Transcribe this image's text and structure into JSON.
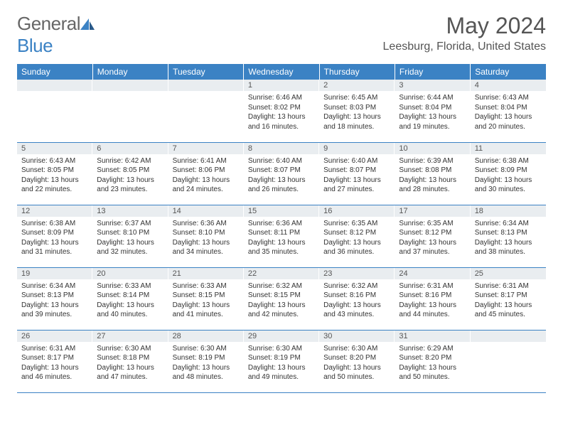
{
  "brand": {
    "part1": "General",
    "part2": "Blue"
  },
  "title": "May 2024",
  "location": "Leesburg, Florida, United States",
  "colors": {
    "accent": "#3b82c4",
    "headerText": "#ffffff",
    "dayBg": "#e9edf0",
    "text": "#333333",
    "border": "#3b82c4"
  },
  "weekdays": [
    "Sunday",
    "Monday",
    "Tuesday",
    "Wednesday",
    "Thursday",
    "Friday",
    "Saturday"
  ],
  "weeks": [
    [
      null,
      null,
      null,
      {
        "n": "1",
        "sr": "Sunrise: 6:46 AM",
        "ss": "Sunset: 8:02 PM",
        "d1": "Daylight: 13 hours",
        "d2": "and 16 minutes."
      },
      {
        "n": "2",
        "sr": "Sunrise: 6:45 AM",
        "ss": "Sunset: 8:03 PM",
        "d1": "Daylight: 13 hours",
        "d2": "and 18 minutes."
      },
      {
        "n": "3",
        "sr": "Sunrise: 6:44 AM",
        "ss": "Sunset: 8:04 PM",
        "d1": "Daylight: 13 hours",
        "d2": "and 19 minutes."
      },
      {
        "n": "4",
        "sr": "Sunrise: 6:43 AM",
        "ss": "Sunset: 8:04 PM",
        "d1": "Daylight: 13 hours",
        "d2": "and 20 minutes."
      }
    ],
    [
      {
        "n": "5",
        "sr": "Sunrise: 6:43 AM",
        "ss": "Sunset: 8:05 PM",
        "d1": "Daylight: 13 hours",
        "d2": "and 22 minutes."
      },
      {
        "n": "6",
        "sr": "Sunrise: 6:42 AM",
        "ss": "Sunset: 8:05 PM",
        "d1": "Daylight: 13 hours",
        "d2": "and 23 minutes."
      },
      {
        "n": "7",
        "sr": "Sunrise: 6:41 AM",
        "ss": "Sunset: 8:06 PM",
        "d1": "Daylight: 13 hours",
        "d2": "and 24 minutes."
      },
      {
        "n": "8",
        "sr": "Sunrise: 6:40 AM",
        "ss": "Sunset: 8:07 PM",
        "d1": "Daylight: 13 hours",
        "d2": "and 26 minutes."
      },
      {
        "n": "9",
        "sr": "Sunrise: 6:40 AM",
        "ss": "Sunset: 8:07 PM",
        "d1": "Daylight: 13 hours",
        "d2": "and 27 minutes."
      },
      {
        "n": "10",
        "sr": "Sunrise: 6:39 AM",
        "ss": "Sunset: 8:08 PM",
        "d1": "Daylight: 13 hours",
        "d2": "and 28 minutes."
      },
      {
        "n": "11",
        "sr": "Sunrise: 6:38 AM",
        "ss": "Sunset: 8:09 PM",
        "d1": "Daylight: 13 hours",
        "d2": "and 30 minutes."
      }
    ],
    [
      {
        "n": "12",
        "sr": "Sunrise: 6:38 AM",
        "ss": "Sunset: 8:09 PM",
        "d1": "Daylight: 13 hours",
        "d2": "and 31 minutes."
      },
      {
        "n": "13",
        "sr": "Sunrise: 6:37 AM",
        "ss": "Sunset: 8:10 PM",
        "d1": "Daylight: 13 hours",
        "d2": "and 32 minutes."
      },
      {
        "n": "14",
        "sr": "Sunrise: 6:36 AM",
        "ss": "Sunset: 8:10 PM",
        "d1": "Daylight: 13 hours",
        "d2": "and 34 minutes."
      },
      {
        "n": "15",
        "sr": "Sunrise: 6:36 AM",
        "ss": "Sunset: 8:11 PM",
        "d1": "Daylight: 13 hours",
        "d2": "and 35 minutes."
      },
      {
        "n": "16",
        "sr": "Sunrise: 6:35 AM",
        "ss": "Sunset: 8:12 PM",
        "d1": "Daylight: 13 hours",
        "d2": "and 36 minutes."
      },
      {
        "n": "17",
        "sr": "Sunrise: 6:35 AM",
        "ss": "Sunset: 8:12 PM",
        "d1": "Daylight: 13 hours",
        "d2": "and 37 minutes."
      },
      {
        "n": "18",
        "sr": "Sunrise: 6:34 AM",
        "ss": "Sunset: 8:13 PM",
        "d1": "Daylight: 13 hours",
        "d2": "and 38 minutes."
      }
    ],
    [
      {
        "n": "19",
        "sr": "Sunrise: 6:34 AM",
        "ss": "Sunset: 8:13 PM",
        "d1": "Daylight: 13 hours",
        "d2": "and 39 minutes."
      },
      {
        "n": "20",
        "sr": "Sunrise: 6:33 AM",
        "ss": "Sunset: 8:14 PM",
        "d1": "Daylight: 13 hours",
        "d2": "and 40 minutes."
      },
      {
        "n": "21",
        "sr": "Sunrise: 6:33 AM",
        "ss": "Sunset: 8:15 PM",
        "d1": "Daylight: 13 hours",
        "d2": "and 41 minutes."
      },
      {
        "n": "22",
        "sr": "Sunrise: 6:32 AM",
        "ss": "Sunset: 8:15 PM",
        "d1": "Daylight: 13 hours",
        "d2": "and 42 minutes."
      },
      {
        "n": "23",
        "sr": "Sunrise: 6:32 AM",
        "ss": "Sunset: 8:16 PM",
        "d1": "Daylight: 13 hours",
        "d2": "and 43 minutes."
      },
      {
        "n": "24",
        "sr": "Sunrise: 6:31 AM",
        "ss": "Sunset: 8:16 PM",
        "d1": "Daylight: 13 hours",
        "d2": "and 44 minutes."
      },
      {
        "n": "25",
        "sr": "Sunrise: 6:31 AM",
        "ss": "Sunset: 8:17 PM",
        "d1": "Daylight: 13 hours",
        "d2": "and 45 minutes."
      }
    ],
    [
      {
        "n": "26",
        "sr": "Sunrise: 6:31 AM",
        "ss": "Sunset: 8:17 PM",
        "d1": "Daylight: 13 hours",
        "d2": "and 46 minutes."
      },
      {
        "n": "27",
        "sr": "Sunrise: 6:30 AM",
        "ss": "Sunset: 8:18 PM",
        "d1": "Daylight: 13 hours",
        "d2": "and 47 minutes."
      },
      {
        "n": "28",
        "sr": "Sunrise: 6:30 AM",
        "ss": "Sunset: 8:19 PM",
        "d1": "Daylight: 13 hours",
        "d2": "and 48 minutes."
      },
      {
        "n": "29",
        "sr": "Sunrise: 6:30 AM",
        "ss": "Sunset: 8:19 PM",
        "d1": "Daylight: 13 hours",
        "d2": "and 49 minutes."
      },
      {
        "n": "30",
        "sr": "Sunrise: 6:30 AM",
        "ss": "Sunset: 8:20 PM",
        "d1": "Daylight: 13 hours",
        "d2": "and 50 minutes."
      },
      {
        "n": "31",
        "sr": "Sunrise: 6:29 AM",
        "ss": "Sunset: 8:20 PM",
        "d1": "Daylight: 13 hours",
        "d2": "and 50 minutes."
      },
      null
    ]
  ]
}
